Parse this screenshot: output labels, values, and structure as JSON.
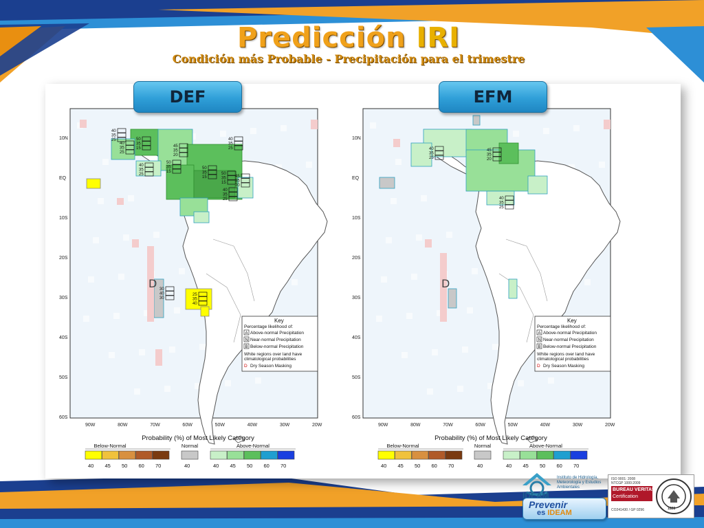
{
  "title_main": "Predicción",
  "title_iri": "IRI",
  "subtitle": "Condición más Probable - Precipitación para el trimestre",
  "maps": [
    {
      "season": "DEF",
      "box_numbers": [
        [
          "40",
          "35",
          "25"
        ],
        [
          "50",
          "35",
          "15"
        ],
        [
          "40",
          "35",
          "25"
        ],
        [
          "40",
          "35",
          "25"
        ],
        [
          "45",
          "35",
          "20"
        ],
        [
          "40",
          "35",
          "25"
        ],
        [
          "50",
          "35",
          "15"
        ],
        [
          "50",
          "35",
          "15"
        ],
        [
          "50",
          "35",
          "15"
        ],
        [
          "45",
          "35",
          "20"
        ],
        [
          "40",
          "35",
          "25"
        ],
        [
          "25",
          "35",
          "40"
        ],
        [
          "30",
          "40",
          "30"
        ]
      ],
      "marker_letter": "D"
    },
    {
      "season": "EFM",
      "box_numbers": [
        [
          "40",
          "35",
          "25"
        ],
        [
          "45",
          "35",
          "20"
        ],
        [
          "40",
          "35",
          "25"
        ]
      ],
      "marker_letter": "D"
    }
  ],
  "lat_labels": [
    "10N",
    "EQ",
    "10S",
    "20S",
    "30S",
    "40S",
    "50S",
    "60S"
  ],
  "lon_labels": [
    "90W",
    "80W",
    "70W",
    "60W",
    "50W",
    "40W",
    "30W",
    "20W"
  ],
  "key": {
    "title": "Key",
    "subtitle": "Percentage likelihood of:",
    "rows": [
      {
        "letter": "A",
        "text": "Above-normal Precipitation"
      },
      {
        "letter": "N",
        "text": "Near-normal Precipitation"
      },
      {
        "letter": "B",
        "text": "Below-normal Precipitation"
      }
    ],
    "note": "White regions over land have climatological probabilities",
    "dry": {
      "letter": "D",
      "text": "Dry Season Masking"
    }
  },
  "colorbar": {
    "title": "Probability (%) of Most Likely Category",
    "below_label": "Below-Normal",
    "normal_label": "Normal",
    "above_label": "Above-Normal",
    "below_ticks": [
      "40",
      "45",
      "50",
      "60",
      "70"
    ],
    "normal_ticks": [
      "40"
    ],
    "above_ticks": [
      "40",
      "45",
      "50",
      "60",
      "70"
    ],
    "below_colors": [
      "#ffff00",
      "#f0c23c",
      "#d89040",
      "#b05a28",
      "#7a3a10"
    ],
    "normal_colors": [
      "#c8c8c8"
    ],
    "above_colors": [
      "#c8f0c8",
      "#98e098",
      "#5cbf5c",
      "#1f9fd0",
      "#1a3fe0"
    ]
  },
  "logos": {
    "ideam_name": "IDEAM",
    "ideam_text": "Instituto de Hidrología, Meteorología y Estudios Ambientales",
    "prevenir_line1": "Prevenir",
    "prevenir_line2_a": "es",
    "prevenir_line2_b": "IDEAM",
    "bv_iso": "ISO 9001: 2008",
    "bv_ntc": "NTCGP 1000:2009",
    "bv_name": "BUREAU VERITAS",
    "bv_cert": "Certification",
    "bv_codes": "CO241430 / GP 0296",
    "bv_year": "1828",
    "bv_seal": "BUREAU VERITAS"
  }
}
